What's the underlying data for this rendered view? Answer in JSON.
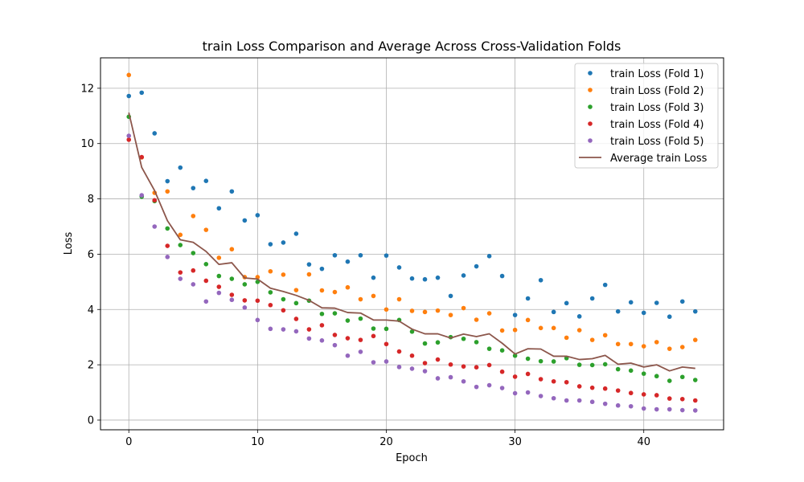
{
  "chart_data": {
    "type": "scatter",
    "title": "train Loss Comparison and Average Across Cross-Validation Folds",
    "xlabel": "Epoch",
    "ylabel": "Loss",
    "xlim": [
      -2.2,
      46.2
    ],
    "ylim": [
      -0.35,
      13.1
    ],
    "xticks": [
      0,
      10,
      20,
      30,
      40
    ],
    "yticks": [
      0,
      2,
      4,
      6,
      8,
      10,
      12
    ],
    "grid": true,
    "legend_position": "top-right",
    "x": [
      0,
      1,
      2,
      3,
      4,
      5,
      6,
      7,
      8,
      9,
      10,
      11,
      12,
      13,
      14,
      15,
      16,
      17,
      18,
      19,
      20,
      21,
      22,
      23,
      24,
      25,
      26,
      27,
      28,
      29,
      30,
      31,
      32,
      33,
      34,
      35,
      36,
      37,
      38,
      39,
      40,
      41,
      42,
      43,
      44
    ],
    "series": [
      {
        "name": "train Loss (Fold 1)",
        "kind": "points",
        "color": "#1f77b4",
        "values": [
          11.72,
          11.84,
          10.37,
          8.64,
          9.13,
          8.39,
          8.65,
          7.66,
          8.27,
          7.22,
          7.41,
          6.36,
          6.42,
          6.74,
          5.63,
          5.47,
          5.96,
          5.73,
          5.96,
          5.15,
          5.95,
          5.52,
          5.12,
          5.09,
          5.15,
          4.49,
          5.23,
          5.56,
          5.93,
          5.21,
          3.8,
          4.4,
          5.06,
          3.91,
          4.23,
          3.75,
          4.4,
          4.89,
          3.93,
          4.26,
          3.88,
          4.24,
          3.74,
          4.29,
          3.93
        ]
      },
      {
        "name": "train Loss (Fold 2)",
        "kind": "points",
        "color": "#ff7f0e",
        "values": [
          12.48,
          9.5,
          8.22,
          8.27,
          6.7,
          7.38,
          6.88,
          5.87,
          6.18,
          5.17,
          5.17,
          5.38,
          5.26,
          4.7,
          5.27,
          4.69,
          4.63,
          4.8,
          4.37,
          4.49,
          4.0,
          4.37,
          3.95,
          3.91,
          3.96,
          3.8,
          4.05,
          3.63,
          3.86,
          3.24,
          3.26,
          3.62,
          3.33,
          3.33,
          2.98,
          3.25,
          2.9,
          3.07,
          2.75,
          2.75,
          2.67,
          2.82,
          2.58,
          2.64,
          2.9
        ]
      },
      {
        "name": "train Loss (Fold 3)",
        "kind": "points",
        "color": "#2ca02c",
        "values": [
          10.97,
          8.08,
          7.92,
          6.93,
          6.33,
          6.04,
          5.64,
          5.21,
          5.11,
          4.91,
          5.0,
          4.62,
          4.37,
          4.23,
          4.32,
          3.84,
          3.86,
          3.6,
          3.67,
          3.31,
          3.3,
          3.62,
          3.2,
          2.77,
          2.81,
          3.0,
          2.94,
          2.82,
          2.58,
          2.52,
          2.33,
          2.22,
          2.13,
          2.12,
          2.24,
          2.0,
          1.99,
          2.02,
          1.84,
          1.79,
          1.68,
          1.59,
          1.42,
          1.56,
          1.45
        ]
      },
      {
        "name": "train Loss (Fold 4)",
        "kind": "points",
        "color": "#d62728",
        "values": [
          10.14,
          9.51,
          7.95,
          6.3,
          5.34,
          5.41,
          5.04,
          4.82,
          4.53,
          4.33,
          4.32,
          4.16,
          3.97,
          3.66,
          3.28,
          3.43,
          3.08,
          2.96,
          2.9,
          3.04,
          2.75,
          2.48,
          2.33,
          2.06,
          2.19,
          2.01,
          1.94,
          1.91,
          1.99,
          1.75,
          1.57,
          1.67,
          1.48,
          1.4,
          1.37,
          1.22,
          1.17,
          1.14,
          1.07,
          0.98,
          0.93,
          0.9,
          0.78,
          0.76,
          0.71
        ]
      },
      {
        "name": "train Loss (Fold 5)",
        "kind": "points",
        "color": "#9467bd",
        "values": [
          10.28,
          8.13,
          7.0,
          5.9,
          5.11,
          4.91,
          4.29,
          4.6,
          4.35,
          4.07,
          3.62,
          3.3,
          3.28,
          3.21,
          2.95,
          2.88,
          2.71,
          2.33,
          2.47,
          2.09,
          2.12,
          1.92,
          1.86,
          1.77,
          1.51,
          1.55,
          1.4,
          1.2,
          1.26,
          1.16,
          0.97,
          1.0,
          0.87,
          0.79,
          0.71,
          0.71,
          0.66,
          0.59,
          0.53,
          0.5,
          0.42,
          0.39,
          0.39,
          0.36,
          0.35
        ]
      },
      {
        "name": "Average train Loss",
        "kind": "line",
        "color": "#8c564b",
        "values": [
          11.12,
          9.14,
          8.3,
          7.21,
          6.52,
          6.43,
          6.1,
          5.63,
          5.69,
          5.14,
          5.1,
          4.77,
          4.65,
          4.51,
          4.33,
          4.06,
          4.05,
          3.89,
          3.87,
          3.62,
          3.62,
          3.58,
          3.29,
          3.12,
          3.12,
          2.97,
          3.11,
          3.02,
          3.12,
          2.78,
          2.39,
          2.58,
          2.57,
          2.31,
          2.31,
          2.19,
          2.22,
          2.34,
          2.02,
          2.06,
          1.92,
          2.0,
          1.78,
          1.92,
          1.87
        ]
      }
    ]
  }
}
